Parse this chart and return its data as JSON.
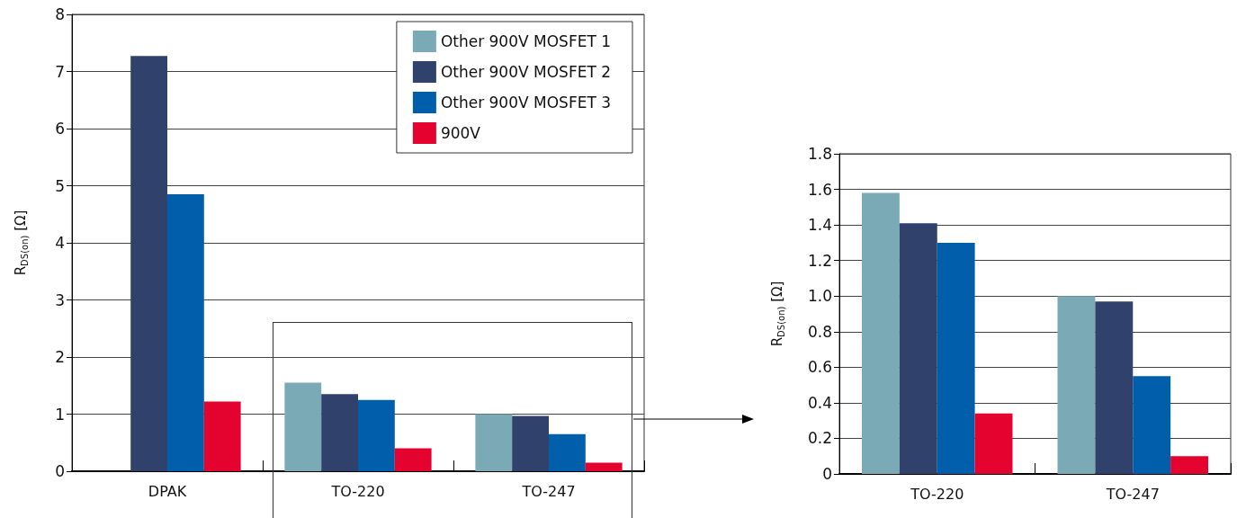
{
  "chart_data": [
    {
      "type": "bar",
      "ylabel": "R$_{DS(on)}$ [Ω]",
      "categories": [
        "DPAK",
        "TO-220",
        "TO-247"
      ],
      "series": [
        {
          "name": "Other 900V MOSFET 1",
          "color": "#7aaab5",
          "values": [
            null,
            1.55,
            1.0
          ]
        },
        {
          "name": "Other 900V MOSFET 2",
          "color": "#30426b",
          "values": [
            7.27,
            1.35,
            0.97
          ]
        },
        {
          "name": "Other 900V MOSFET 3",
          "color": "#005eab",
          "values": [
            4.85,
            1.25,
            0.65
          ]
        },
        {
          "name": "900V",
          "color": "#e4032f",
          "values": [
            1.22,
            0.4,
            0.15
          ]
        }
      ],
      "ylim": [
        0,
        8
      ],
      "yticks": [
        0,
        1,
        2,
        3,
        4,
        5,
        6,
        7,
        8
      ],
      "grid": "y",
      "legend": "top right"
    },
    {
      "type": "bar",
      "ylabel": "R$_{DS(on)}$ [Ω]",
      "categories": [
        "TO-220",
        "TO-247"
      ],
      "series": [
        {
          "color": "#7aaab5",
          "values": [
            1.58,
            1.0
          ]
        },
        {
          "color": "#30426b",
          "values": [
            1.41,
            0.97
          ]
        },
        {
          "color": "#005eab",
          "values": [
            1.3,
            0.55
          ]
        },
        {
          "color": "#e4032f",
          "values": [
            0.34,
            0.1
          ]
        }
      ],
      "ylim": [
        0,
        1.8
      ],
      "yticks": [
        0,
        0.2,
        0.4,
        0.6,
        0.8,
        {
          "value": 1,
          "label": "1.0"
        },
        1.2,
        1.4,
        1.6,
        1.8
      ],
      "grid": "y"
    }
  ]
}
